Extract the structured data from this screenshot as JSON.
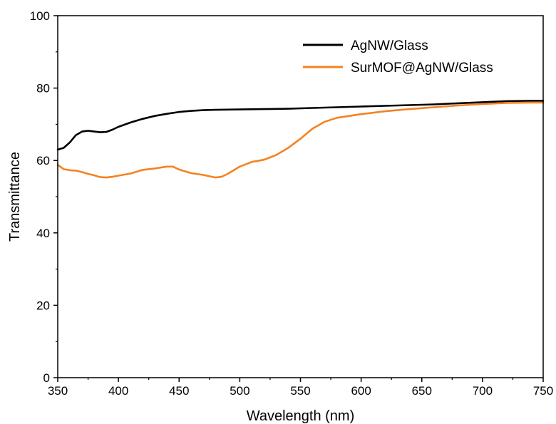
{
  "chart_data": {
    "type": "line",
    "title": "",
    "xlabel": "Wavelength (nm)",
    "ylabel": "Transmittance",
    "xlim": [
      350,
      750
    ],
    "ylim": [
      0,
      100
    ],
    "xticks": [
      350,
      400,
      450,
      500,
      550,
      600,
      650,
      700,
      750
    ],
    "yticks": [
      0,
      20,
      40,
      60,
      80,
      100
    ],
    "grid": false,
    "legend_position": "top-right",
    "series": [
      {
        "name": "AgNW/Glass",
        "color": "#000000",
        "x": [
          350,
          355,
          360,
          365,
          370,
          375,
          380,
          385,
          390,
          395,
          400,
          410,
          420,
          430,
          440,
          450,
          460,
          470,
          480,
          500,
          520,
          540,
          560,
          580,
          600,
          620,
          640,
          660,
          680,
          700,
          720,
          740,
          750
        ],
        "y": [
          63.0,
          63.5,
          65.0,
          67.0,
          68.0,
          68.2,
          68.0,
          67.8,
          67.9,
          68.5,
          69.3,
          70.5,
          71.5,
          72.3,
          72.9,
          73.4,
          73.7,
          73.9,
          74.0,
          74.1,
          74.2,
          74.3,
          74.5,
          74.7,
          74.9,
          75.1,
          75.3,
          75.5,
          75.8,
          76.1,
          76.4,
          76.5,
          76.5
        ]
      },
      {
        "name": "SurMOF@AgNW/Glass",
        "color": "#f58220",
        "x": [
          350,
          355,
          360,
          365,
          370,
          375,
          380,
          385,
          390,
          395,
          400,
          410,
          420,
          430,
          440,
          445,
          450,
          460,
          470,
          480,
          485,
          490,
          500,
          510,
          520,
          530,
          540,
          550,
          560,
          570,
          580,
          600,
          620,
          640,
          660,
          680,
          700,
          720,
          740,
          750
        ],
        "y": [
          58.8,
          57.6,
          57.3,
          57.2,
          56.8,
          56.3,
          55.9,
          55.4,
          55.3,
          55.5,
          55.8,
          56.4,
          57.4,
          57.8,
          58.3,
          58.3,
          57.5,
          56.5,
          56.0,
          55.3,
          55.5,
          56.3,
          58.3,
          59.6,
          60.2,
          61.5,
          63.5,
          66.0,
          68.8,
          70.7,
          71.8,
          72.8,
          73.6,
          74.2,
          74.7,
          75.2,
          75.6,
          75.9,
          76.0,
          76.0
        ]
      }
    ]
  }
}
